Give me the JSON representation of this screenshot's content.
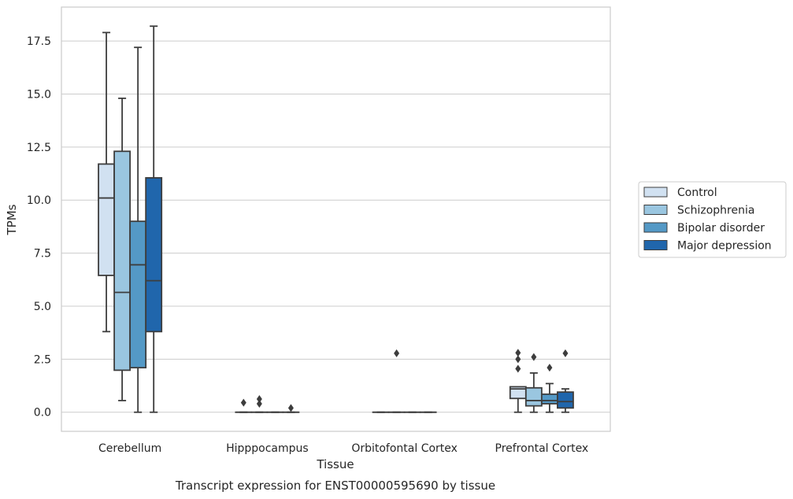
{
  "chart_data": {
    "type": "box",
    "caption": "Transcript expression for ENST00000595690 by tissue",
    "xlabel": "Tissue",
    "ylabel": "TPMs",
    "ylim": [
      -0.9,
      19.1
    ],
    "yticks": [
      0.0,
      2.5,
      5.0,
      7.5,
      10.0,
      12.5,
      15.0,
      17.5
    ],
    "ytick_labels": [
      "0.0",
      "2.5",
      "5.0",
      "7.5",
      "10.0",
      "12.5",
      "15.0",
      "17.5"
    ],
    "grid": "horizontal",
    "legend_position": "right",
    "categories": [
      "Cerebellum",
      "Hipppocampus",
      "Orbitofontal Cortex",
      "Prefrontal Cortex"
    ],
    "series": [
      {
        "name": "Control",
        "color": "#d1e1f1",
        "boxes": [
          {
            "min": 3.8,
            "q1": 6.45,
            "median": 10.1,
            "q3": 11.7,
            "max": 17.9,
            "outliers": []
          },
          {
            "min": 0.0,
            "q1": 0.0,
            "median": 0.0,
            "q3": 0.0,
            "max": 0.0,
            "outliers": [
              0.45
            ]
          },
          {
            "min": 0.0,
            "q1": 0.0,
            "median": 0.0,
            "q3": 0.0,
            "max": 0.0,
            "outliers": []
          },
          {
            "min": 0.0,
            "q1": 0.65,
            "median": 1.1,
            "q3": 1.2,
            "max": 1.2,
            "outliers": [
              2.05,
              2.5,
              2.8
            ]
          }
        ]
      },
      {
        "name": "Schizophrenia",
        "color": "#9ac6e0",
        "boxes": [
          {
            "min": 0.55,
            "q1": 1.98,
            "median": 5.65,
            "q3": 12.3,
            "max": 14.8,
            "outliers": []
          },
          {
            "min": 0.0,
            "q1": 0.0,
            "median": 0.0,
            "q3": 0.0,
            "max": 0.0,
            "outliers": [
              0.4,
              0.62
            ]
          },
          {
            "min": 0.0,
            "q1": 0.0,
            "median": 0.0,
            "q3": 0.0,
            "max": 0.0,
            "outliers": [
              2.78
            ]
          },
          {
            "min": 0.0,
            "q1": 0.3,
            "median": 0.55,
            "q3": 1.15,
            "max": 1.85,
            "outliers": [
              2.6
            ]
          }
        ]
      },
      {
        "name": "Bipolar disorder",
        "color": "#5499c6",
        "boxes": [
          {
            "min": 0.0,
            "q1": 2.1,
            "median": 6.95,
            "q3": 9.0,
            "max": 17.2,
            "outliers": []
          },
          {
            "min": 0.0,
            "q1": 0.0,
            "median": 0.0,
            "q3": 0.0,
            "max": 0.0,
            "outliers": []
          },
          {
            "min": 0.0,
            "q1": 0.0,
            "median": 0.0,
            "q3": 0.0,
            "max": 0.0,
            "outliers": []
          },
          {
            "min": 0.0,
            "q1": 0.4,
            "median": 0.55,
            "q3": 0.85,
            "max": 1.35,
            "outliers": [
              2.1
            ]
          }
        ]
      },
      {
        "name": "Major depression",
        "color": "#2066ac",
        "boxes": [
          {
            "min": 0.0,
            "q1": 3.8,
            "median": 6.2,
            "q3": 11.05,
            "max": 18.2,
            "outliers": []
          },
          {
            "min": 0.0,
            "q1": 0.0,
            "median": 0.0,
            "q3": 0.0,
            "max": 0.0,
            "outliers": [
              0.2
            ]
          },
          {
            "min": 0.0,
            "q1": 0.0,
            "median": 0.0,
            "q3": 0.0,
            "max": 0.0,
            "outliers": []
          },
          {
            "min": 0.0,
            "q1": 0.2,
            "median": 0.5,
            "q3": 0.95,
            "max": 1.1,
            "outliers": [
              2.78
            ]
          }
        ]
      }
    ]
  }
}
